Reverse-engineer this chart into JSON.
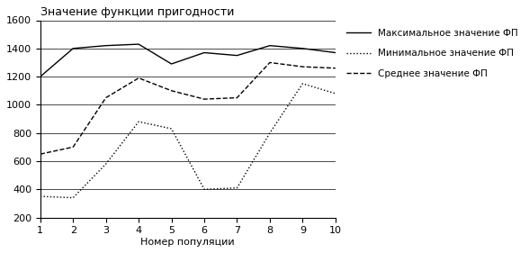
{
  "x": [
    1,
    2,
    3,
    4,
    5,
    6,
    7,
    8,
    9,
    10
  ],
  "max_fp": [
    1200,
    1400,
    1420,
    1430,
    1290,
    1370,
    1350,
    1420,
    1400,
    1370
  ],
  "min_fp": [
    350,
    340,
    580,
    880,
    830,
    400,
    410,
    800,
    1150,
    1080
  ],
  "avg_fp": [
    650,
    700,
    1050,
    1190,
    1100,
    1040,
    1050,
    1300,
    1270,
    1260
  ],
  "title": "Значение функции пригодности",
  "xlabel": "Номер популяции",
  "ylim": [
    200,
    1600
  ],
  "xlim": [
    1,
    10
  ],
  "yticks": [
    200,
    400,
    600,
    800,
    1000,
    1200,
    1400,
    1600
  ],
  "xticks": [
    1,
    2,
    3,
    4,
    5,
    6,
    7,
    8,
    9,
    10
  ],
  "legend_max": "Максимальное значение ФП",
  "legend_min": "Минимальное значение ФП",
  "legend_avg": "Среднее значение ФП",
  "line_color": "#000000",
  "bg_color": "#ffffff",
  "title_fontsize": 9,
  "axis_fontsize": 8,
  "legend_fontsize": 7.5
}
